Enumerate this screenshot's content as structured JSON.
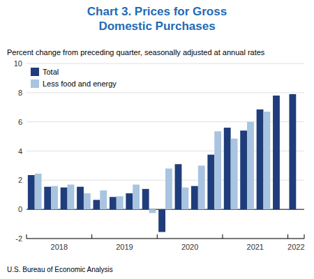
{
  "chart_data": {
    "type": "bar",
    "title": "Chart 3. Prices for Gross\nDomestic Purchases",
    "subtitle": "Percent change from preceding quarter, seasonally adjusted at annual rates",
    "annotations": [
      "U.S. Bureau of Economic Analysis"
    ],
    "categories": [
      "2018",
      null,
      null,
      null,
      "2019",
      null,
      null,
      null,
      "2020",
      null,
      null,
      null,
      "2021",
      null,
      null,
      null,
      "2022"
    ],
    "series": [
      {
        "name": "Total",
        "color": "#1F3D7A",
        "values": [
          2.35,
          1.55,
          1.5,
          1.55,
          0.65,
          0.85,
          1.1,
          1.4,
          -1.55,
          3.1,
          1.6,
          3.75,
          5.6,
          5.4,
          6.85,
          7.8,
          7.9
        ]
      },
      {
        "name": "Less food and energy",
        "color": "#A8C4E0",
        "values": [
          2.45,
          1.6,
          1.7,
          1.1,
          1.3,
          0.9,
          1.7,
          -0.25,
          2.8,
          1.5,
          3.0,
          5.35,
          4.85,
          6.0,
          6.7,
          null,
          null
        ]
      }
    ],
    "ylim": [
      -2,
      10
    ],
    "yticks": [
      -2,
      0,
      2,
      4,
      6,
      8,
      10
    ],
    "grid": true,
    "legend": "upper left"
  }
}
